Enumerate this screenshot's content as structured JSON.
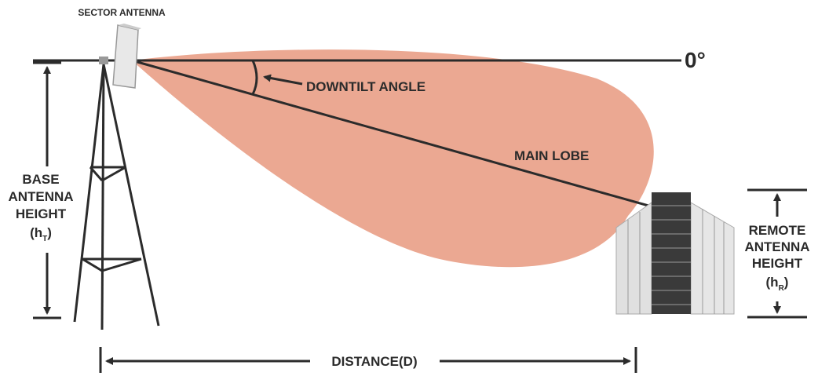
{
  "labels": {
    "sector_antenna": "SECTOR ANTENNA",
    "zero_degree": "0°",
    "downtilt_angle": "DOWNTILT ANGLE",
    "main_lobe": "MAIN LOBE",
    "distance": "DISTANCE(D)"
  },
  "base_height": {
    "lines": [
      "BASE",
      "ANTENNA",
      "HEIGHT"
    ],
    "symbol": "(h",
    "subscript": "T",
    "close": ")"
  },
  "remote_height": {
    "lines": [
      "REMOTE",
      "ANTENNA",
      "HEIGHT"
    ],
    "symbol": "(h",
    "subscript": "R",
    "close": ")"
  }
}
